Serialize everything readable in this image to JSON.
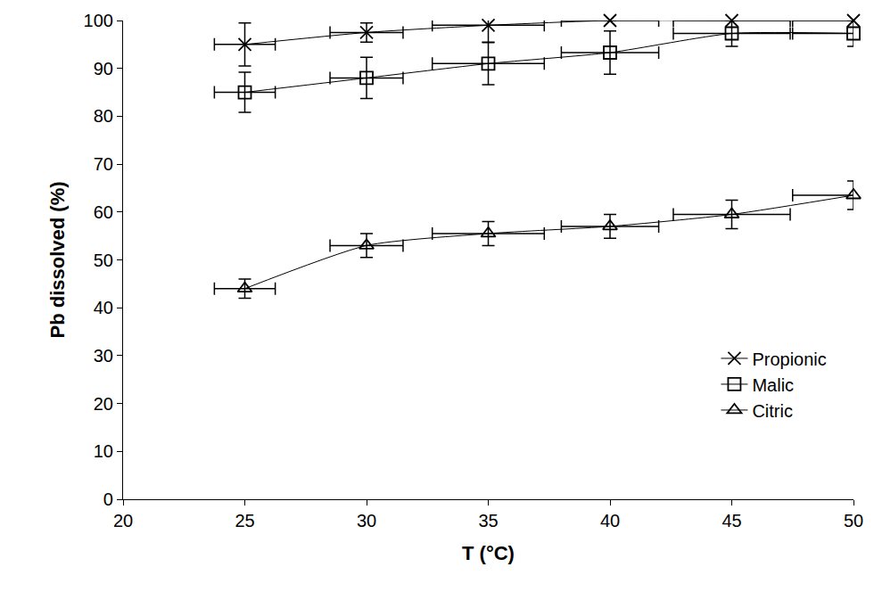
{
  "chart_data": {
    "type": "line",
    "x_label": "T (°C)",
    "y_label": "Pb dissolved (%)",
    "x": [
      25,
      30,
      35,
      40,
      45,
      50
    ],
    "series": [
      {
        "name": "Propionic",
        "color": "#000000",
        "marker": "x",
        "values": [
          95,
          97.5,
          99,
          100,
          100,
          100
        ],
        "error_y": [
          4.5,
          2,
          3.5,
          0,
          0,
          0
        ],
        "error_x": [
          1.25,
          1.5,
          2.3,
          2,
          2.4,
          2.5
        ]
      },
      {
        "name": "Malic",
        "color": "#000000",
        "marker": "square",
        "values": [
          85,
          88,
          91,
          93.3,
          97.3,
          97.3
        ],
        "error_y": [
          4.2,
          4.3,
          4.4,
          4.5,
          2.7,
          2.7
        ],
        "error_x": [
          1.25,
          1.5,
          2.3,
          2,
          2.4,
          2.5
        ]
      },
      {
        "name": "Citric",
        "color": "#000000",
        "marker": "triangle",
        "values": [
          44,
          53,
          55.5,
          57,
          59.5,
          63.5
        ],
        "error_y": [
          2,
          2.5,
          2.5,
          2.5,
          3,
          3
        ],
        "error_x": [
          1.25,
          1.5,
          2.3,
          2,
          2.4,
          2.5
        ]
      }
    ],
    "xlim": [
      20,
      50
    ],
    "xticks": [
      20,
      25,
      30,
      35,
      40,
      45,
      50
    ],
    "ylim": [
      0,
      100
    ],
    "yticks": [
      0,
      10,
      20,
      30,
      40,
      50,
      60,
      70,
      80,
      90,
      100
    ],
    "grid": false,
    "legend": "lower right"
  }
}
